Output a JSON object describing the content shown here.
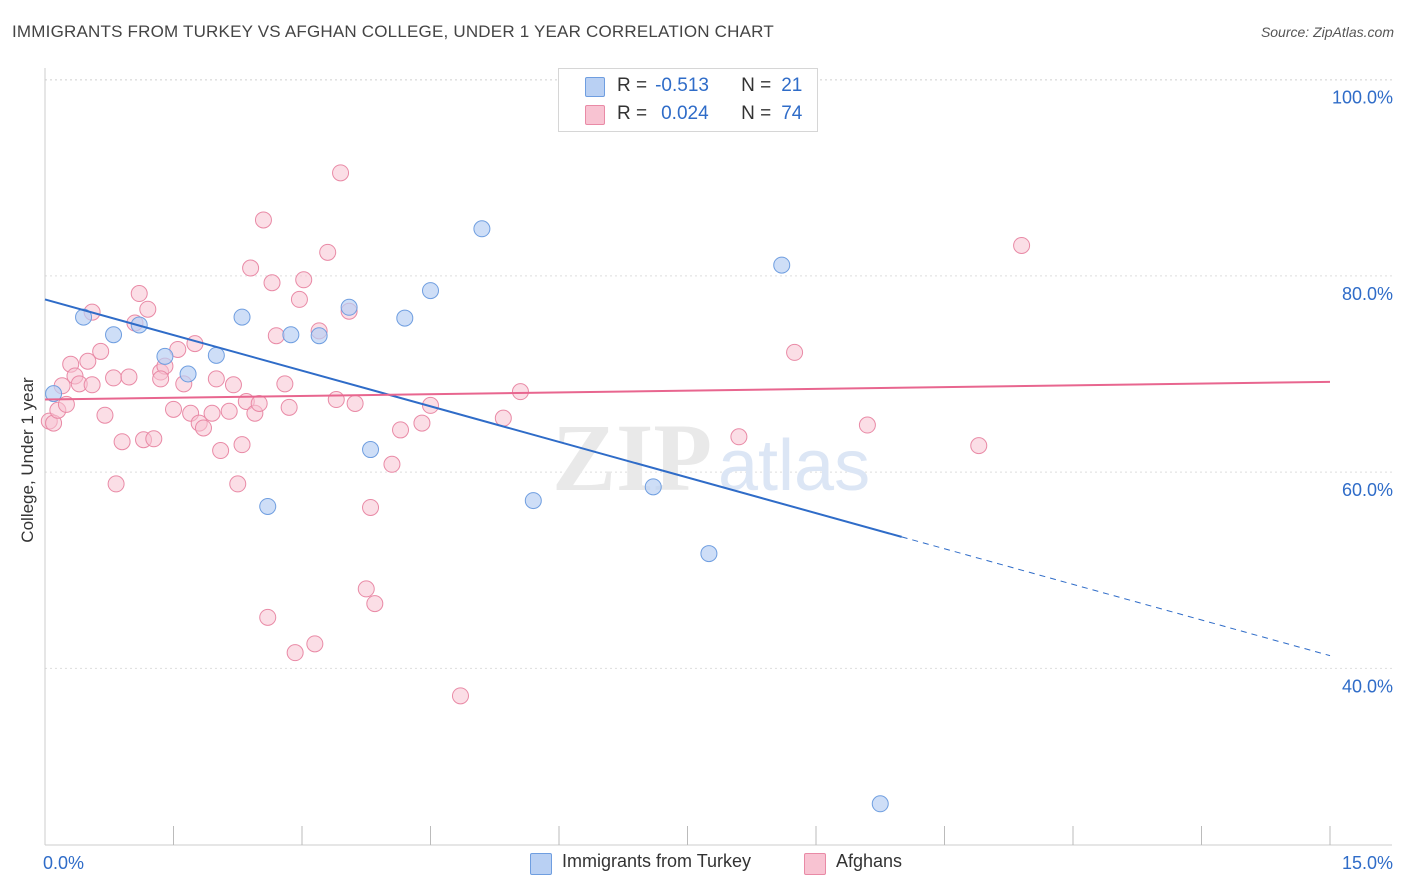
{
  "title": "IMMIGRANTS FROM TURKEY VS AFGHAN COLLEGE, UNDER 1 YEAR CORRELATION CHART",
  "source": "Source: ZipAtlas.com",
  "watermark": {
    "zip": "ZIP",
    "atlas": "atlas"
  },
  "legend": {
    "r_label": "R =",
    "n_label": "N =",
    "series": [
      {
        "r": "-0.513",
        "n": "21",
        "fill": "#b9d0f3",
        "stroke": "#6f9ee0"
      },
      {
        "r": "0.024",
        "n": "74",
        "fill": "#f8c3d2",
        "stroke": "#e98aa6"
      }
    ]
  },
  "bottom_legend": [
    "Immigrants from Turkey",
    "Afghans"
  ],
  "colors": {
    "blue": "#2f6cc8",
    "pink": "#e8668f",
    "blue_fill": "#b9d0f3",
    "pink_fill": "#f8c3d2",
    "grid": "#dddddd"
  },
  "chart_data": {
    "type": "scatter",
    "xlabel": "",
    "ylabel": "College, Under 1 year",
    "x_tick_labels": [
      "0.0%",
      "15.0%"
    ],
    "y_tick_labels": [
      "100.0%",
      "80.0%",
      "60.0%",
      "40.0%"
    ],
    "xlim": [
      0,
      15
    ],
    "ylim": [
      22,
      102
    ],
    "y_ticks": [
      100,
      80,
      60,
      40
    ],
    "grid": true,
    "series": [
      {
        "name": "Immigrants from Turkey",
        "color": "#6f9ee0",
        "points": [
          [
            0.1,
            68.0
          ],
          [
            0.45,
            75.8
          ],
          [
            0.8,
            74.0
          ],
          [
            1.1,
            75.0
          ],
          [
            1.4,
            71.8
          ],
          [
            1.67,
            70.0
          ],
          [
            2.0,
            71.9
          ],
          [
            2.3,
            75.8
          ],
          [
            2.6,
            56.5
          ],
          [
            2.87,
            74.0
          ],
          [
            3.2,
            73.9
          ],
          [
            3.55,
            76.8
          ],
          [
            3.8,
            62.3
          ],
          [
            4.2,
            75.7
          ],
          [
            4.5,
            78.5
          ],
          [
            5.1,
            84.8
          ],
          [
            5.7,
            57.1
          ],
          [
            7.1,
            58.5
          ],
          [
            7.75,
            51.7
          ],
          [
            8.6,
            81.1
          ],
          [
            9.75,
            26.2
          ]
        ],
        "trend": {
          "x1": 0,
          "y1": 77.6,
          "x2": 10.0,
          "y2": 53.4,
          "x_dash_end": 15.0,
          "y_dash_end": 41.3
        }
      },
      {
        "name": "Afghans",
        "color": "#e98aa6",
        "points": [
          [
            0.05,
            65.2
          ],
          [
            0.1,
            65.0
          ],
          [
            0.15,
            66.3
          ],
          [
            0.2,
            68.8
          ],
          [
            0.3,
            71.0
          ],
          [
            0.35,
            69.8
          ],
          [
            0.4,
            69.0
          ],
          [
            0.5,
            71.3
          ],
          [
            0.55,
            76.3
          ],
          [
            0.65,
            72.3
          ],
          [
            0.7,
            65.8
          ],
          [
            0.8,
            69.6
          ],
          [
            0.83,
            58.8
          ],
          [
            0.9,
            63.1
          ],
          [
            0.98,
            69.7
          ],
          [
            1.05,
            75.2
          ],
          [
            1.1,
            78.2
          ],
          [
            1.15,
            63.3
          ],
          [
            1.2,
            76.6
          ],
          [
            1.27,
            63.4
          ],
          [
            1.35,
            70.2
          ],
          [
            1.4,
            70.8
          ],
          [
            1.5,
            66.4
          ],
          [
            1.55,
            72.5
          ],
          [
            1.62,
            69.0
          ],
          [
            1.7,
            66.0
          ],
          [
            1.75,
            73.1
          ],
          [
            1.8,
            65.0
          ],
          [
            1.85,
            64.5
          ],
          [
            1.95,
            66.0
          ],
          [
            2.0,
            69.5
          ],
          [
            2.05,
            62.2
          ],
          [
            2.15,
            66.2
          ],
          [
            2.2,
            68.9
          ],
          [
            2.25,
            58.8
          ],
          [
            2.3,
            62.8
          ],
          [
            2.35,
            67.2
          ],
          [
            2.4,
            80.8
          ],
          [
            2.45,
            66.0
          ],
          [
            2.5,
            67.0
          ],
          [
            2.55,
            85.7
          ],
          [
            2.6,
            45.2
          ],
          [
            2.65,
            79.3
          ],
          [
            2.7,
            73.9
          ],
          [
            2.8,
            69.0
          ],
          [
            2.85,
            66.6
          ],
          [
            2.92,
            41.6
          ],
          [
            2.97,
            77.6
          ],
          [
            3.02,
            79.6
          ],
          [
            3.15,
            42.5
          ],
          [
            3.2,
            74.4
          ],
          [
            3.3,
            82.4
          ],
          [
            3.4,
            67.4
          ],
          [
            3.45,
            90.5
          ],
          [
            3.55,
            76.4
          ],
          [
            3.62,
            67.0
          ],
          [
            3.75,
            48.1
          ],
          [
            3.8,
            56.4
          ],
          [
            3.85,
            46.6
          ],
          [
            4.05,
            60.8
          ],
          [
            4.15,
            64.3
          ],
          [
            4.4,
            65.0
          ],
          [
            4.5,
            66.8
          ],
          [
            4.85,
            37.2
          ],
          [
            5.35,
            65.5
          ],
          [
            5.55,
            68.2
          ],
          [
            8.1,
            63.6
          ],
          [
            8.75,
            72.2
          ],
          [
            9.6,
            64.8
          ],
          [
            10.9,
            62.7
          ],
          [
            11.4,
            83.1
          ],
          [
            0.55,
            68.9
          ],
          [
            1.35,
            69.5
          ],
          [
            0.25,
            66.9
          ]
        ],
        "trend": {
          "x1": 0,
          "y1": 67.4,
          "x2": 15.0,
          "y2": 69.2
        }
      }
    ]
  }
}
